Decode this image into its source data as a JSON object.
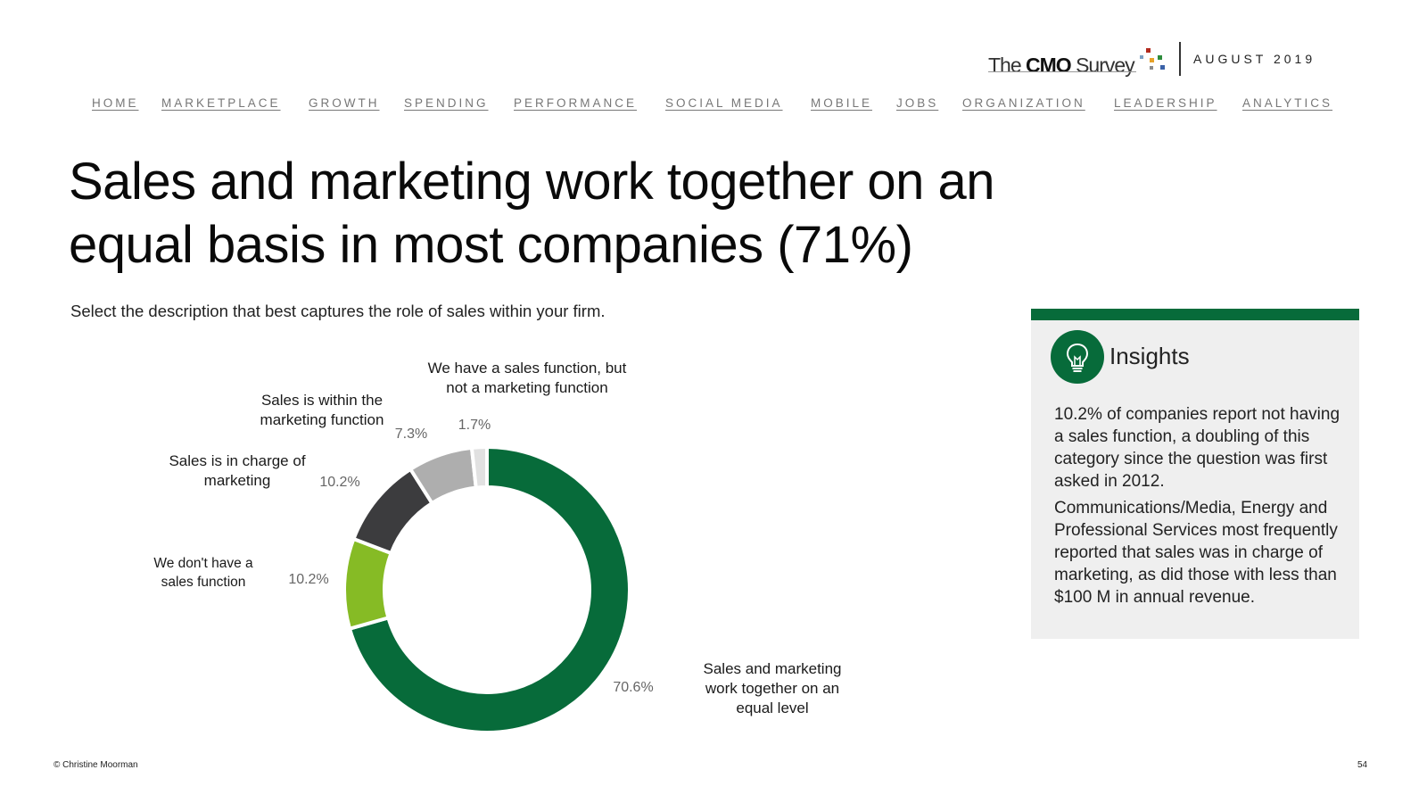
{
  "header": {
    "logo": {
      "the": "The",
      "cmo": "CMO",
      "survey": "Survey"
    },
    "date": "AUGUST 2019"
  },
  "nav": [
    "HOME",
    "MARKETPLACE",
    "GROWTH",
    "SPENDING",
    "PERFORMANCE",
    "SOCIAL MEDIA",
    "MOBILE",
    "JOBS",
    "ORGANIZATION",
    "LEADERSHIP",
    "ANALYTICS"
  ],
  "title_line1": "Sales and marketing work together on an",
  "title_line2": "equal basis in most companies (71%)",
  "question": "Select the description that best captures the role of sales within your firm.",
  "chart_data": {
    "type": "pie",
    "style": "donut",
    "start": "top, clockwise",
    "slices": [
      {
        "label": "Sales and marketing work together on an equal level",
        "value": 70.6,
        "value_label": "70.6%",
        "color": "#076b3a"
      },
      {
        "label": "We don't have a sales function",
        "value": 10.2,
        "value_label": "10.2%",
        "color": "#86bb25"
      },
      {
        "label": "Sales is in charge of marketing",
        "value": 10.2,
        "value_label": "10.2%",
        "color": "#3c3c3e"
      },
      {
        "label": "Sales is within the marketing function",
        "value": 7.3,
        "value_label": "7.3%",
        "color": "#aeaeae"
      },
      {
        "label": "We have a sales function, but not a marketing function",
        "value": 1.7,
        "value_label": "1.7%",
        "color": "#e1e1e1"
      }
    ],
    "category_label_lines": [
      [
        "Sales and marketing",
        "work together on an",
        "equal level"
      ],
      [
        "We don't have a",
        "sales function"
      ],
      [
        "Sales is in charge of",
        "marketing"
      ],
      [
        "Sales is within the",
        "marketing function"
      ],
      [
        "We have a sales function, but",
        "not a marketing function"
      ]
    ]
  },
  "insights": {
    "title": "Insights",
    "paragraphs": [
      "10.2% of companies report not having a sales function, a doubling of this category since the question was first asked in 2012.",
      "Communications/Media, Energy and Professional Services most frequently reported that sales was in charge of marketing, as did those with less than $100 M in annual revenue."
    ],
    "accent_color": "#076b3a",
    "icon": "lightbulb-icon"
  },
  "footer": {
    "copyright": "© Christine Moorman",
    "page_number": "54"
  }
}
